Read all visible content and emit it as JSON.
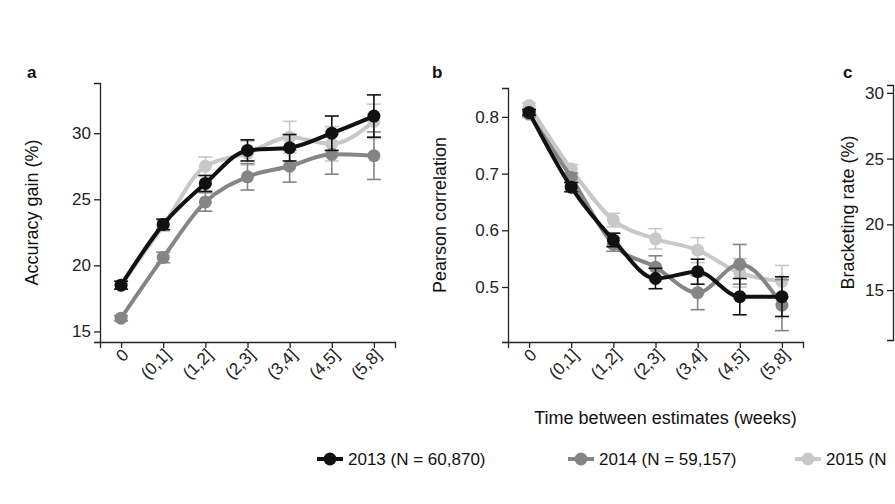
{
  "chart_data": [
    {
      "type": "line",
      "title": "a",
      "y_label": "Accuracy gain (%)",
      "categories": [
        "0",
        "(0,1]",
        "(1,2]",
        "(2,3]",
        "(3,4]",
        "(4,5]",
        "(5,8]"
      ],
      "ylim": [
        14.2,
        33.8
      ],
      "yticks": [
        15,
        20,
        25,
        30
      ],
      "marker": "circle",
      "series": [
        {
          "name": "2013 (N = 60,870)",
          "color": "#111111",
          "values": [
            18.5,
            23.1,
            26.2,
            28.7,
            28.9,
            30.0,
            31.3
          ],
          "errors": [
            0.3,
            0.4,
            0.6,
            0.8,
            1.0,
            1.3,
            1.6
          ]
        },
        {
          "name": "2014 (N = 59,157)",
          "color": "#858585",
          "values": [
            16.0,
            20.6,
            24.8,
            26.7,
            27.5,
            28.4,
            28.3
          ],
          "errors": [
            0.2,
            0.4,
            0.7,
            1.0,
            1.2,
            1.5,
            1.8
          ]
        },
        {
          "name": "2015 (N",
          "color": "#c8c8c8",
          "values": [
            18.5,
            23.0,
            27.5,
            28.5,
            29.7,
            29.2,
            30.9
          ],
          "errors": [
            0.3,
            0.4,
            0.7,
            0.9,
            1.2,
            1.3,
            1.3
          ]
        }
      ]
    },
    {
      "type": "line",
      "title": "b",
      "y_label": "Pearson correlation",
      "x_label": "Time between estimates (weeks)",
      "categories": [
        "0",
        "(0,1]",
        "(1,2]",
        "(2,3]",
        "(3,4]",
        "(4,5]",
        "(5,8]"
      ],
      "ylim": [
        0.403,
        0.851
      ],
      "yticks": [
        0.5,
        0.6,
        0.7,
        0.8
      ],
      "marker": "circle",
      "series": [
        {
          "color": "#111111",
          "values": [
            0.808,
            0.676,
            0.583,
            0.515,
            0.527,
            0.483,
            0.483
          ],
          "errors": [
            0.005,
            0.008,
            0.012,
            0.018,
            0.022,
            0.032,
            0.035
          ]
        },
        {
          "color": "#858585",
          "values": [
            0.805,
            0.693,
            0.575,
            0.535,
            0.49,
            0.54,
            0.468
          ],
          "errors": [
            0.005,
            0.008,
            0.012,
            0.02,
            0.03,
            0.035,
            0.045
          ]
        },
        {
          "color": "#c8c8c8",
          "values": [
            0.82,
            0.708,
            0.618,
            0.585,
            0.565,
            0.525,
            0.51
          ],
          "errors": [
            0.005,
            0.008,
            0.012,
            0.018,
            0.022,
            0.025,
            0.028
          ]
        }
      ]
    },
    {
      "type": "line",
      "title": "c",
      "y_label": "Bracketing rate (%)",
      "ylim": [
        11.2,
        30.6
      ],
      "yticks": [
        15,
        20,
        25,
        30
      ],
      "series": []
    }
  ]
}
